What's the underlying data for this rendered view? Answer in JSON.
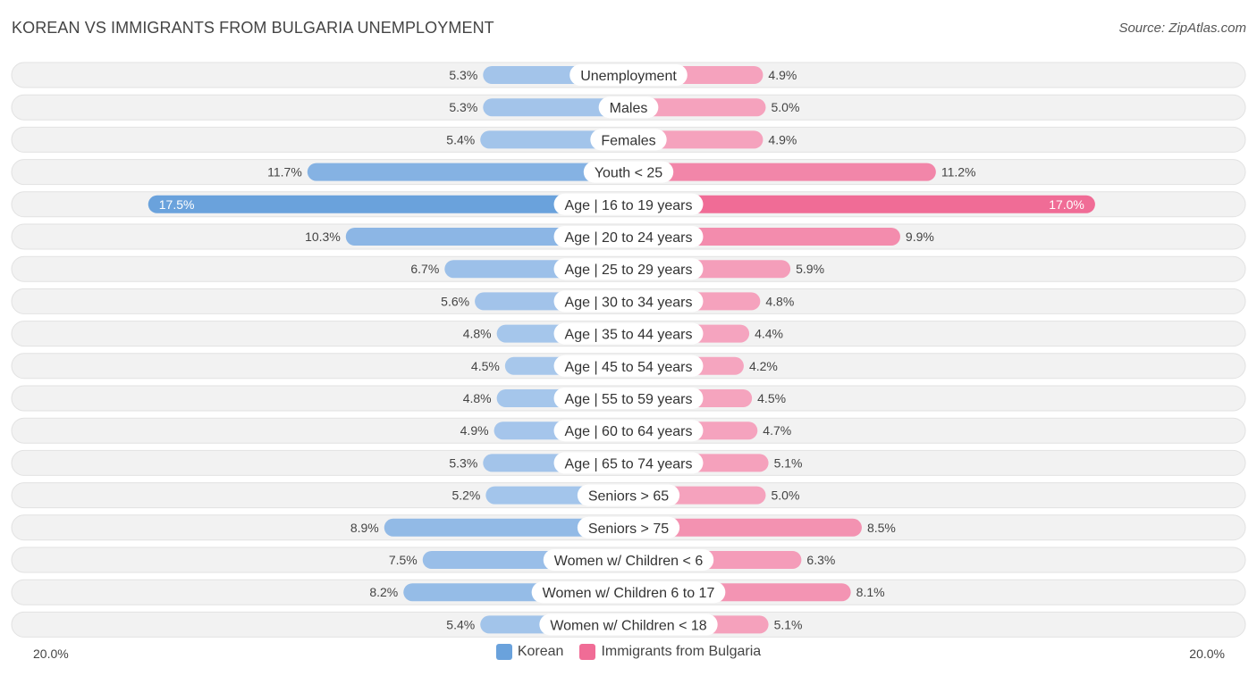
{
  "title": "KOREAN VS IMMIGRANTS FROM BULGARIA UNEMPLOYMENT",
  "source": "Source: ZipAtlas.com",
  "colors": {
    "korean": "#6aa2dc",
    "korean_light": "#a9c8ec",
    "bulgaria": "#f06c96",
    "bulgaria_light": "#f5a6c0",
    "row_bg": "#eeeeee"
  },
  "legend": {
    "korean": "Korean",
    "bulgaria": "Immigrants from Bulgaria"
  },
  "axis": {
    "left_label": "20.0%",
    "right_label": "20.0%"
  },
  "chart_data": {
    "type": "bar",
    "orientation": "horizontal-diverging",
    "xlim": [
      -20,
      20
    ],
    "categories": [
      "Unemployment",
      "Males",
      "Females",
      "Youth < 25",
      "Age | 16 to 19 years",
      "Age | 20 to 24 years",
      "Age | 25 to 29 years",
      "Age | 30 to 34 years",
      "Age | 35 to 44 years",
      "Age | 45 to 54 years",
      "Age | 55 to 59 years",
      "Age | 60 to 64 years",
      "Age | 65 to 74 years",
      "Seniors > 65",
      "Seniors > 75",
      "Women w/ Children < 6",
      "Women w/ Children 6 to 17",
      "Women w/ Children < 18"
    ],
    "series": [
      {
        "name": "Korean",
        "values": [
          5.3,
          5.3,
          5.4,
          11.7,
          17.5,
          10.3,
          6.7,
          5.6,
          4.8,
          4.5,
          4.8,
          4.9,
          5.3,
          5.2,
          8.9,
          7.5,
          8.2,
          5.4
        ],
        "labels": [
          "5.3%",
          "5.3%",
          "5.4%",
          "11.7%",
          "17.5%",
          "10.3%",
          "6.7%",
          "5.6%",
          "4.8%",
          "4.5%",
          "4.8%",
          "4.9%",
          "5.3%",
          "5.2%",
          "8.9%",
          "7.5%",
          "8.2%",
          "5.4%"
        ]
      },
      {
        "name": "Immigrants from Bulgaria",
        "values": [
          4.9,
          5.0,
          4.9,
          11.2,
          17.0,
          9.9,
          5.9,
          4.8,
          4.4,
          4.2,
          4.5,
          4.7,
          5.1,
          5.0,
          8.5,
          6.3,
          8.1,
          5.1
        ],
        "labels": [
          "4.9%",
          "5.0%",
          "4.9%",
          "11.2%",
          "17.0%",
          "9.9%",
          "5.9%",
          "4.8%",
          "4.4%",
          "4.2%",
          "4.5%",
          "4.7%",
          "5.1%",
          "5.0%",
          "8.5%",
          "6.3%",
          "8.1%",
          "5.1%"
        ]
      }
    ],
    "grid": false,
    "legend_position": "bottom-center"
  }
}
